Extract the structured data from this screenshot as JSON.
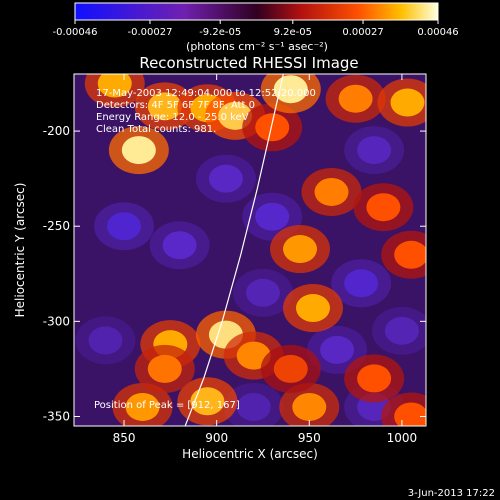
{
  "chart_data": {
    "type": "heatmap",
    "title": "Reconstructed RHESSI Image",
    "xlabel": "Heliocentric X (arcsec)",
    "ylabel": "Heliocentric Y (arcsec)",
    "xlim": [
      823,
      1013
    ],
    "ylim": [
      -355,
      -170
    ],
    "xticks": [
      850,
      900,
      950,
      1000
    ],
    "yticks": [
      -200,
      -250,
      -300,
      -350
    ],
    "colorbar": {
      "range": [
        -0.00046,
        0.00046
      ],
      "tick_values": [
        -0.00046,
        -0.00027,
        -9.2e-05,
        9.2e-05,
        0.00027,
        0.00046
      ],
      "tick_labels": [
        "-0.00046",
        "-0.00027",
        "-9.2e-05",
        "9.2e-05",
        "0.00027",
        "0.00046"
      ],
      "units_label": "(photons cm⁻² s⁻¹ asec⁻²)"
    },
    "annotations": [
      "17-May-2003 12:49:04.000 to 12:52:20.000",
      "Detectors: 4F 5F 6F 7F 8F, Att 0",
      "Energy Range: 12.0 - 25.0 keV",
      "Clean     Total counts: 981."
    ],
    "peak_label": "Position of Peak = [912, 167]",
    "timestamp": "3-Jun-2013 17:22",
    "limb_curve": [
      [
        883,
        -355
      ],
      [
        893,
        -330
      ],
      [
        903,
        -300
      ],
      [
        913,
        -265
      ],
      [
        922,
        -230
      ],
      [
        929,
        -200
      ],
      [
        936,
        -170
      ]
    ],
    "hot_spots": [
      {
        "x": 845,
        "y": -175,
        "v": 0.0003
      },
      {
        "x": 858,
        "y": -210,
        "v": 0.00042
      },
      {
        "x": 872,
        "y": -187,
        "v": 0.00032
      },
      {
        "x": 895,
        "y": -188,
        "v": 0.0003
      },
      {
        "x": 910,
        "y": -192,
        "v": 0.00036
      },
      {
        "x": 930,
        "y": -198,
        "v": 0.0002
      },
      {
        "x": 940,
        "y": -178,
        "v": 0.00042
      },
      {
        "x": 975,
        "y": -183,
        "v": 0.00025
      },
      {
        "x": 1003,
        "y": -185,
        "v": 0.0003
      },
      {
        "x": 962,
        "y": -232,
        "v": 0.00025
      },
      {
        "x": 945,
        "y": -262,
        "v": 0.00028
      },
      {
        "x": 990,
        "y": -240,
        "v": 0.0002
      },
      {
        "x": 1005,
        "y": -265,
        "v": 0.0002
      },
      {
        "x": 952,
        "y": -293,
        "v": 0.0003
      },
      {
        "x": 875,
        "y": -312,
        "v": 0.0003
      },
      {
        "x": 905,
        "y": -307,
        "v": 0.0004
      },
      {
        "x": 920,
        "y": -318,
        "v": 0.00026
      },
      {
        "x": 860,
        "y": -345,
        "v": 0.00028
      },
      {
        "x": 895,
        "y": -342,
        "v": 0.00032
      },
      {
        "x": 950,
        "y": -345,
        "v": 0.00026
      },
      {
        "x": 985,
        "y": -330,
        "v": 0.0002
      },
      {
        "x": 1005,
        "y": -350,
        "v": 0.0002
      },
      {
        "x": 940,
        "y": -325,
        "v": 0.00018
      },
      {
        "x": 872,
        "y": -325,
        "v": 0.00024
      }
    ],
    "cold_spots": [
      {
        "x": 850,
        "y": -250,
        "v": -0.00028
      },
      {
        "x": 880,
        "y": -260,
        "v": -0.00025
      },
      {
        "x": 905,
        "y": -225,
        "v": -0.00024
      },
      {
        "x": 930,
        "y": -245,
        "v": -0.00026
      },
      {
        "x": 985,
        "y": -210,
        "v": -0.00022
      },
      {
        "x": 978,
        "y": -280,
        "v": -0.00027
      },
      {
        "x": 1000,
        "y": -305,
        "v": -0.0002
      },
      {
        "x": 925,
        "y": -285,
        "v": -0.0002
      },
      {
        "x": 965,
        "y": -315,
        "v": -0.00024
      },
      {
        "x": 985,
        "y": -345,
        "v": -0.00022
      },
      {
        "x": 840,
        "y": -310,
        "v": -0.00018
      },
      {
        "x": 920,
        "y": -345,
        "v": -0.00018
      }
    ]
  }
}
